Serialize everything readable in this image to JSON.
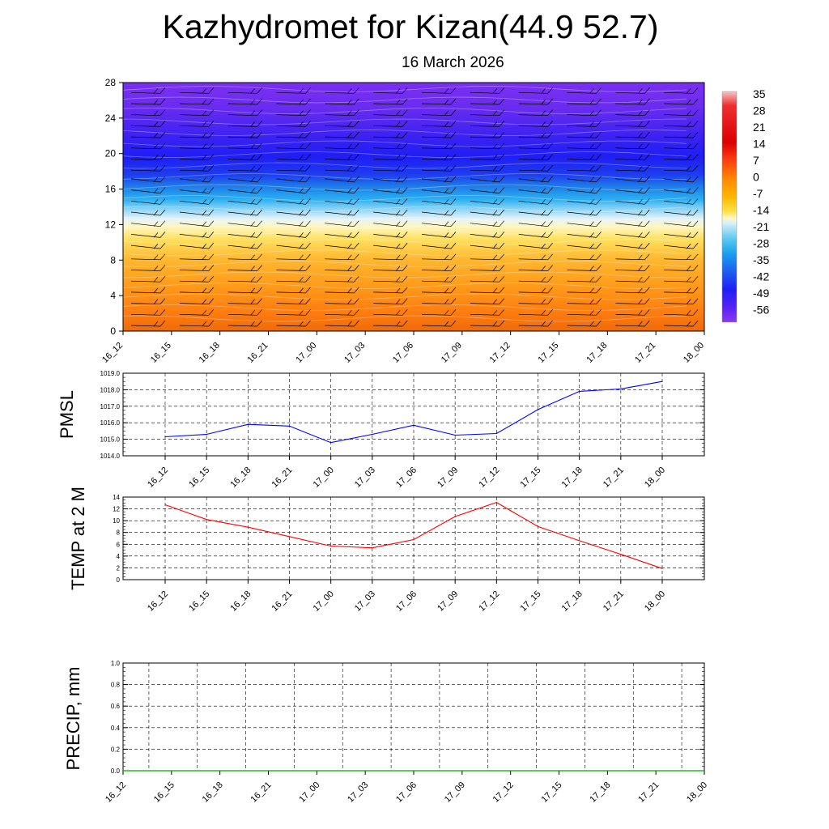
{
  "header": {
    "title": "Kazhydromet for Kizan(44.9 52.7)",
    "date": "16 March 2026"
  },
  "colors": {
    "pmsl_line": "#0000ff",
    "temp_line": "#ff0000",
    "precip_line": "#00aa00",
    "grid": "#000000"
  },
  "chart_data": [
    {
      "type": "heatmap",
      "title": "Kazhydromet for Kizan(44.9 52.7)",
      "subtitle": "16 March 2026",
      "x_tick_labels": [
        "16_12",
        "16_15",
        "16_18",
        "16_21",
        "17_00",
        "17_03",
        "17_06",
        "17_09",
        "17_12",
        "17_15",
        "17_18",
        "17_21",
        "18_00"
      ],
      "y_ticks": [
        0,
        4,
        8,
        12,
        16,
        20,
        24,
        28
      ],
      "ylim": [
        0,
        28
      ],
      "colorbar_labels": [
        "35",
        "28",
        "21",
        "14",
        "7",
        "0",
        "-7",
        "-14",
        "-21",
        "-28",
        "-35",
        "-42",
        "-49",
        "-56"
      ],
      "legend_position": "right",
      "note": "temperature shading by level with wind barbs"
    },
    {
      "type": "line",
      "ylabel": "PMSL",
      "x_tick_labels": [
        "16_12",
        "16_15",
        "16_18",
        "16_21",
        "17_00",
        "17_03",
        "17_06",
        "17_09",
        "17_12",
        "17_15",
        "17_18",
        "17_21",
        "18_00"
      ],
      "y_ticks": [
        1014,
        1015,
        1016,
        1017,
        1018,
        1019
      ],
      "y_tick_labels": [
        "1014.0",
        "1015.0",
        "1016.0",
        "1017.0",
        "1018.0",
        "1019.0"
      ],
      "ylim": [
        1014,
        1019
      ],
      "grid": true,
      "values": [
        1015.15,
        1015.3,
        1015.9,
        1015.8,
        1014.8,
        1015.3,
        1015.85,
        1015.25,
        1015.35,
        1016.8,
        1017.9,
        1018.05,
        1018.5
      ]
    },
    {
      "type": "line",
      "ylabel": "TEMP at 2 M",
      "x_tick_labels": [
        "16_12",
        "16_15",
        "16_18",
        "16_21",
        "17_00",
        "17_03",
        "17_06",
        "17_09",
        "17_12",
        "17_15",
        "17_18",
        "17_21",
        "18_00"
      ],
      "y_ticks": [
        0,
        2,
        4,
        6,
        8,
        10,
        12,
        14
      ],
      "y_tick_labels": [
        "0",
        "2",
        "4",
        "6",
        "8",
        "10",
        "12",
        "14"
      ],
      "ylim": [
        0,
        14
      ],
      "grid": true,
      "values": [
        12.7,
        10.2,
        8.9,
        7.3,
        5.7,
        5.4,
        6.8,
        10.7,
        13.1,
        9.0,
        6.6,
        4.3,
        1.9
      ]
    },
    {
      "type": "line",
      "ylabel": "PRECIP, mm",
      "x_tick_labels": [
        "16_12",
        "16_15",
        "16_18",
        "16_21",
        "17_00",
        "17_03",
        "17_06",
        "17_09",
        "17_12",
        "17_15",
        "17_18",
        "17_21",
        "18_00"
      ],
      "y_ticks": [
        0,
        0.2,
        0.4,
        0.6,
        0.8,
        1.0
      ],
      "y_tick_labels": [
        "0.0",
        "0.2",
        "0.4",
        "0.6",
        "0.8",
        "1.0"
      ],
      "ylim": [
        0,
        1
      ],
      "grid": true,
      "values": [
        0,
        0,
        0,
        0,
        0,
        0,
        0,
        0,
        0,
        0,
        0,
        0
      ]
    }
  ]
}
